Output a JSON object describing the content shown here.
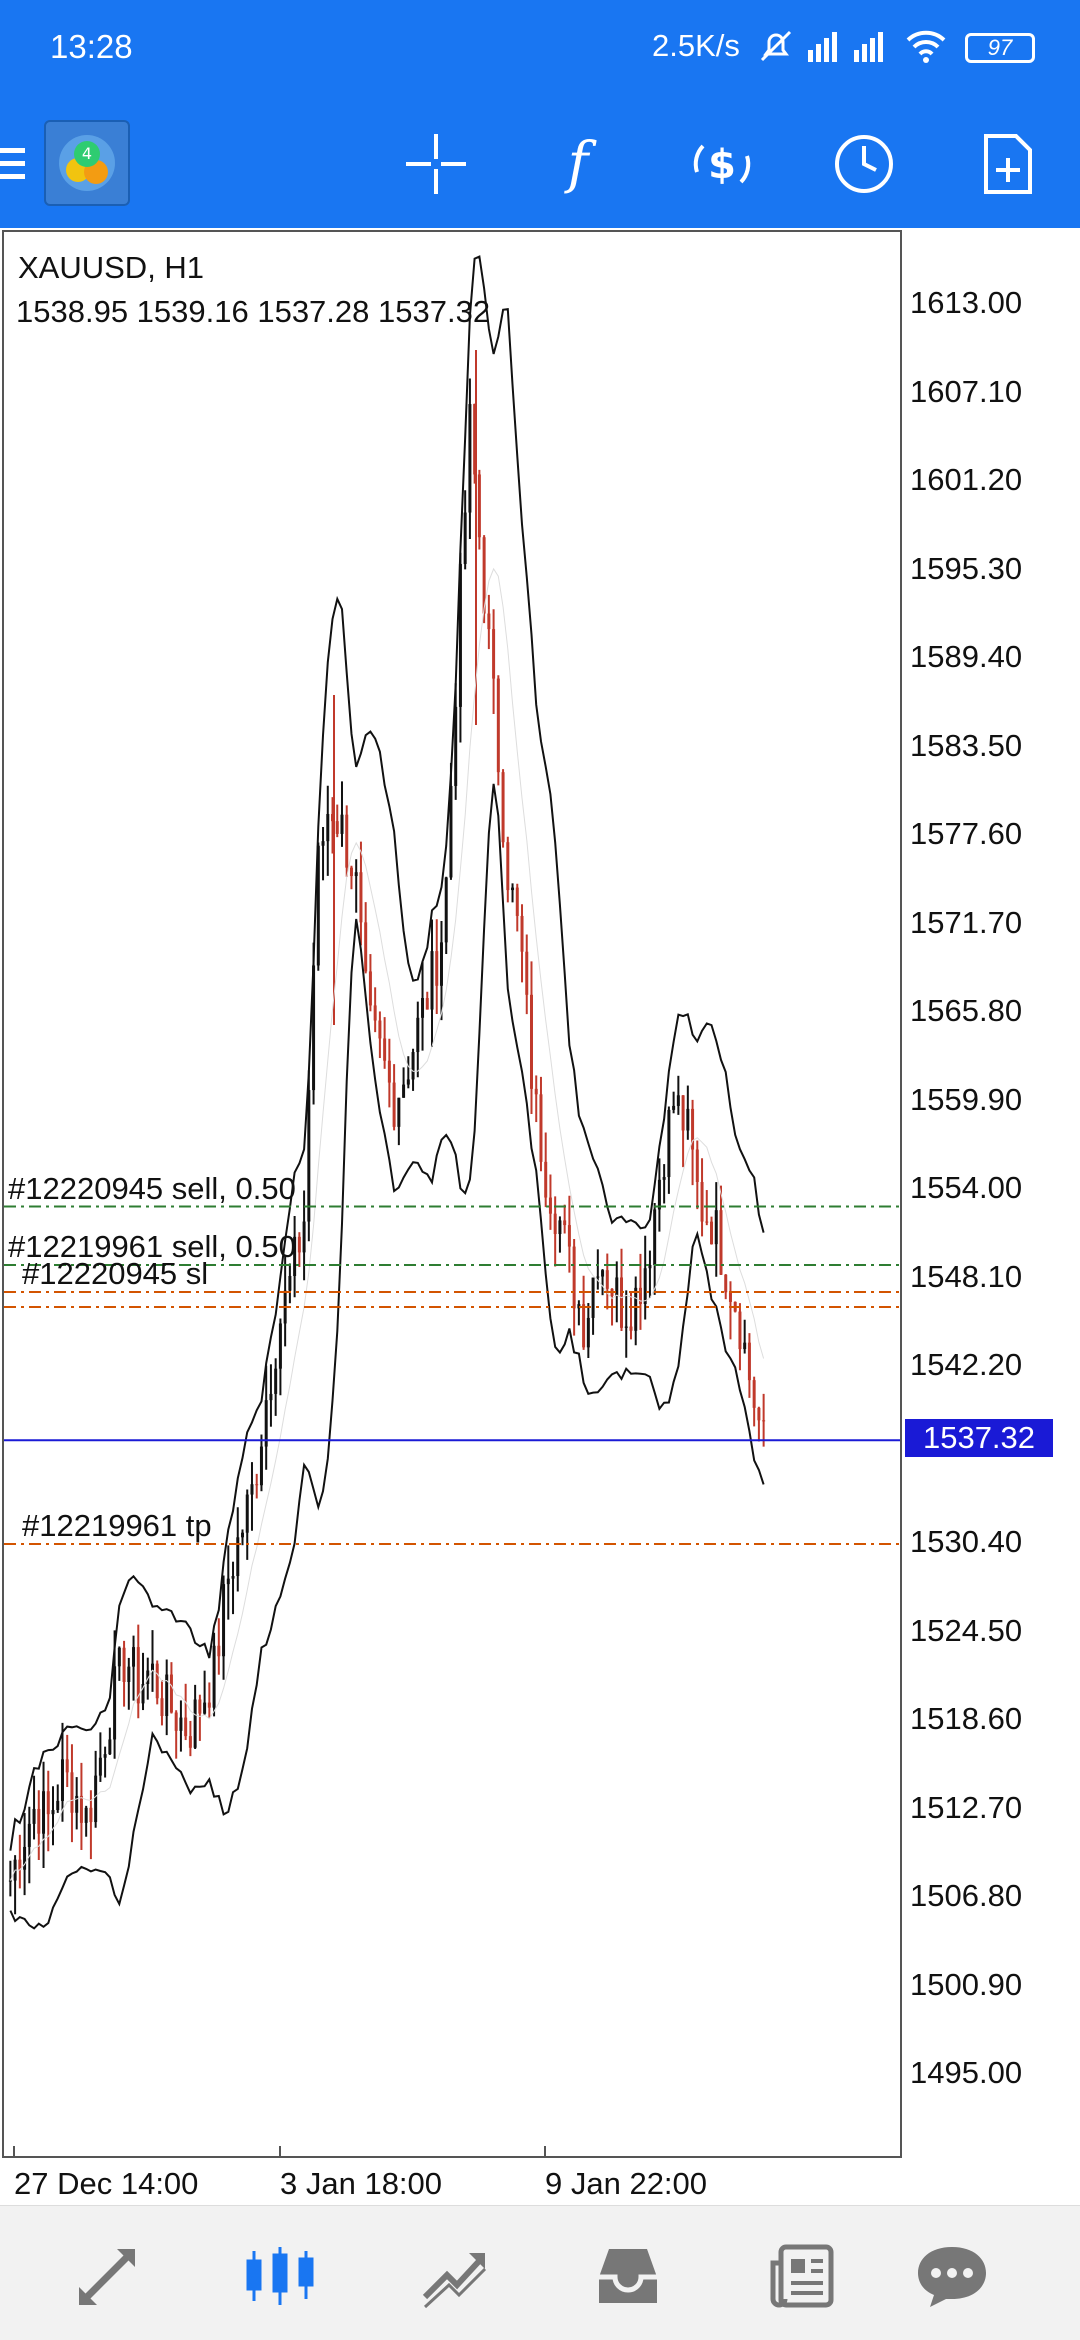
{
  "status": {
    "time": "13:28",
    "net_speed": "2.5K/s",
    "battery": "97",
    "icons": [
      "mute-icon",
      "signal-icon",
      "signal-icon",
      "wifi-icon",
      "battery-icon"
    ]
  },
  "toolbar": {
    "menu_icon": "menu-icon",
    "app_icon": "metatrader-logo",
    "buttons": [
      "crosshair-icon",
      "indicators-icon",
      "symbols-icon",
      "timeframe-icon",
      "new-order-icon"
    ]
  },
  "chart": {
    "symbol": "XAUUSD, H1",
    "ohlc": "1538.95 1539.16 1537.28 1537.32",
    "current_price": "1537.32",
    "price_labels": [
      "1613.00",
      "1607.10",
      "1601.20",
      "1595.30",
      "1589.40",
      "1583.50",
      "1577.60",
      "1571.70",
      "1565.80",
      "1559.90",
      "1554.00",
      "1548.10",
      "1542.20",
      "1530.40",
      "1524.50",
      "1518.60",
      "1512.70",
      "1506.80",
      "1500.90",
      "1495.00"
    ],
    "time_labels": [
      "27 Dec 14:00",
      "3 Jan 18:00",
      "9 Jan 22:00"
    ],
    "orders": [
      {
        "text": "#12220945 sell, 0.50",
        "price": 1552.9,
        "color": "#2e7d32"
      },
      {
        "text": "#12219961 sell, 0.50",
        "price": 1549.0,
        "color": "#2e7d32"
      },
      {
        "text": "#12220945 sl",
        "price": 1547.2,
        "color": "#d35400"
      },
      {
        "text": "#12219961 tp",
        "price": 1530.4,
        "color": "#d35400"
      }
    ],
    "extra_level": {
      "price": 1546.2,
      "color": "#d35400"
    },
    "accent_colors": {
      "bull": "#111111",
      "bear": "#c0392b",
      "bid_line": "#1a1ad6"
    }
  },
  "chart_data": {
    "type": "candlestick",
    "title": "XAUUSD, H1",
    "ylim": [
      1490,
      1618
    ],
    "close_path": [
      1508,
      1511,
      1513,
      1512,
      1515,
      1514,
      1512,
      1516,
      1520,
      1523,
      1521,
      1522,
      1520,
      1519,
      1518,
      1520,
      1522,
      1528,
      1531,
      1534,
      1540,
      1545,
      1548,
      1552,
      1575,
      1580,
      1578,
      1575,
      1565,
      1563,
      1560,
      1562,
      1565,
      1568,
      1572,
      1590,
      1605,
      1595,
      1585,
      1575,
      1570,
      1560,
      1555,
      1552,
      1548,
      1545,
      1550,
      1548,
      1546,
      1547,
      1550,
      1556,
      1560,
      1558,
      1553,
      1552,
      1549,
      1546,
      1541,
      1537
    ]
  },
  "bottom_nav": {
    "items": [
      {
        "name": "quotes-tab",
        "icon": "quotes-icon",
        "active": false
      },
      {
        "name": "chart-tab",
        "icon": "chart-icon",
        "active": true
      },
      {
        "name": "trade-tab",
        "icon": "trade-icon",
        "active": false
      },
      {
        "name": "history-tab",
        "icon": "history-icon",
        "active": false
      },
      {
        "name": "news-tab",
        "icon": "news-icon",
        "active": false
      },
      {
        "name": "chat-tab",
        "icon": "chat-icon",
        "active": false
      }
    ]
  }
}
